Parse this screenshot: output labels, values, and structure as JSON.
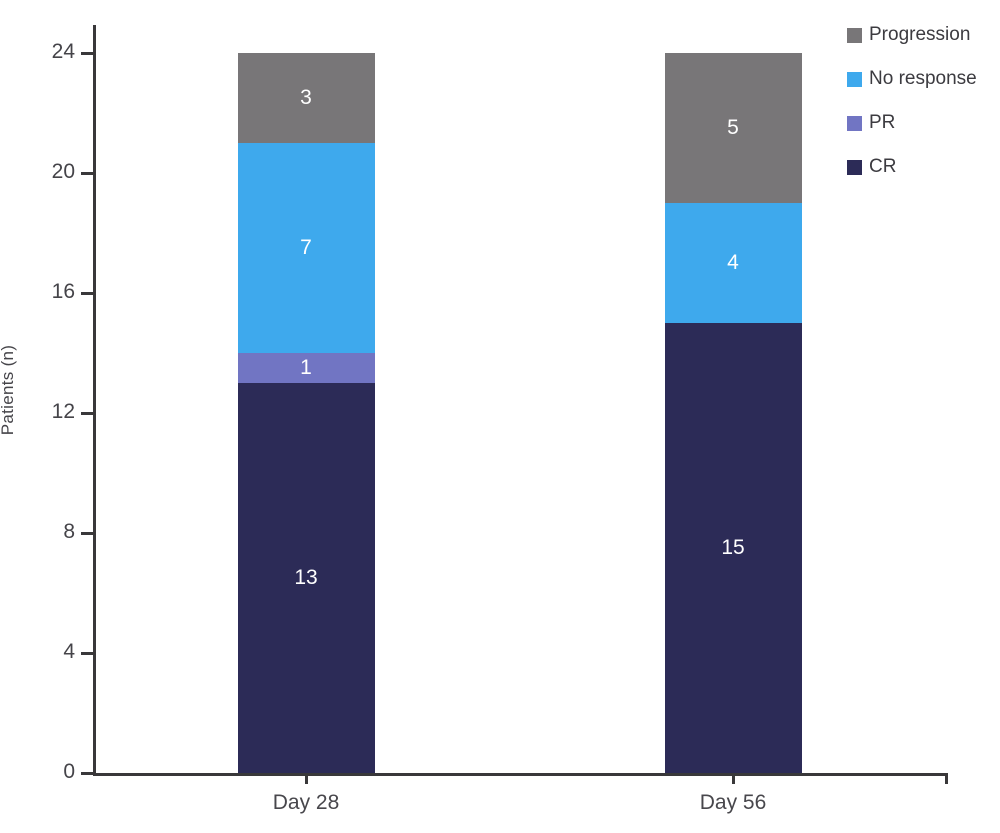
{
  "chart_data": {
    "type": "bar",
    "stacked": true,
    "title": "",
    "xlabel": "",
    "ylabel": "Patients (n)",
    "categories": [
      "Day 28",
      "Day 56"
    ],
    "series": [
      {
        "name": "CR",
        "color": "#2c2b57",
        "values": [
          13,
          15
        ]
      },
      {
        "name": "PR",
        "color": "#7175c3",
        "values": [
          1,
          0
        ]
      },
      {
        "name": "No response",
        "color": "#3ea9ed",
        "values": [
          7,
          4
        ]
      },
      {
        "name": "Progression",
        "color": "#787678",
        "values": [
          3,
          5
        ]
      }
    ],
    "bar_totals": [
      24,
      24
    ],
    "ylim": [
      0,
      24
    ],
    "yticks": [
      0,
      4,
      8,
      12,
      16,
      20,
      24
    ],
    "grid": false,
    "legend_position": "top-right",
    "legend_order": [
      "Progression",
      "No response",
      "PR",
      "CR"
    ],
    "value_labels_shown": true,
    "value_label_color": "#ffffff",
    "axis_color": "#39383a"
  }
}
